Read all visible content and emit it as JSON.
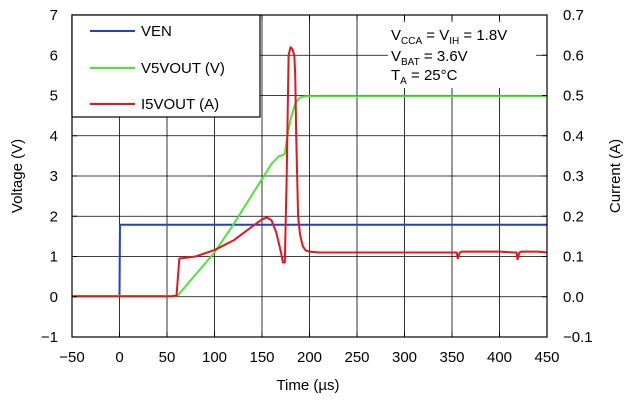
{
  "chart_data": {
    "type": "line",
    "xlabel": "Time (µs)",
    "ylabel": "Voltage (V)",
    "y2label": "Current (A)",
    "xlim": [
      -50,
      450
    ],
    "ylim": [
      -1,
      7
    ],
    "y2lim": [
      -0.1,
      0.7
    ],
    "x_ticks": [
      "−50",
      "0",
      "50",
      "100",
      "150",
      "200",
      "250",
      "300",
      "350",
      "400",
      "450"
    ],
    "y_ticks": [
      "−1",
      "0",
      "1",
      "2",
      "3",
      "4",
      "5",
      "6",
      "7"
    ],
    "y2_ticks": [
      "−0.1",
      "0.0",
      "0.1",
      "0.2",
      "0.3",
      "0.4",
      "0.5",
      "0.6",
      "0.7"
    ],
    "grid": true,
    "legend_position": "top-left",
    "conditions": {
      "line1": {
        "a": "V",
        "a_sub": "CCA",
        "eq1": " = V",
        "b_sub": "IH",
        "eq2": " = 1.8V"
      },
      "line2": {
        "a": "V",
        "a_sub": "BAT",
        "eq": " = 3.6V"
      },
      "line3": {
        "a": "T",
        "a_sub": "A",
        "eq": " = 25°C"
      }
    },
    "series": [
      {
        "name": "VEN",
        "color": "#1f3fd8",
        "axis": "left",
        "x": [
          -50,
          -1,
          0,
          0.5,
          450
        ],
        "y": [
          0.02,
          0.02,
          0.02,
          1.79,
          1.79
        ]
      },
      {
        "name": "V5VOUT (V)",
        "color": "#4be53a",
        "axis": "left",
        "x": [
          -50,
          60,
          62,
          80,
          100,
          120,
          140,
          160,
          168,
          170,
          174,
          176,
          180,
          185,
          190,
          196,
          200,
          450
        ],
        "y": [
          0.02,
          0.02,
          0.05,
          0.55,
          1.1,
          1.8,
          2.55,
          3.3,
          3.5,
          3.5,
          3.55,
          3.9,
          4.4,
          4.8,
          4.95,
          4.98,
          4.98,
          4.98
        ]
      },
      {
        "name": "I5VOUT (A)",
        "color": "#e8141c",
        "axis": "right",
        "x": [
          -50,
          55,
          60,
          63,
          70,
          80,
          100,
          120,
          140,
          150,
          155,
          160,
          165,
          170,
          172,
          174,
          176,
          178,
          180,
          182,
          184,
          185,
          186,
          188,
          190,
          193,
          196,
          200,
          210,
          250,
          300,
          352,
          355,
          356,
          358,
          360,
          400,
          415,
          418,
          419,
          421,
          423,
          440,
          450
        ],
        "y": [
          0.001,
          0.001,
          0.003,
          0.095,
          0.097,
          0.1,
          0.116,
          0.14,
          0.175,
          0.192,
          0.197,
          0.19,
          0.16,
          0.11,
          0.085,
          0.085,
          0.3,
          0.6,
          0.62,
          0.615,
          0.6,
          0.55,
          0.4,
          0.2,
          0.155,
          0.125,
          0.115,
          0.112,
          0.11,
          0.11,
          0.11,
          0.11,
          0.11,
          0.095,
          0.109,
          0.112,
          0.112,
          0.11,
          0.11,
          0.093,
          0.11,
          0.112,
          0.112,
          0.11
        ]
      }
    ]
  }
}
